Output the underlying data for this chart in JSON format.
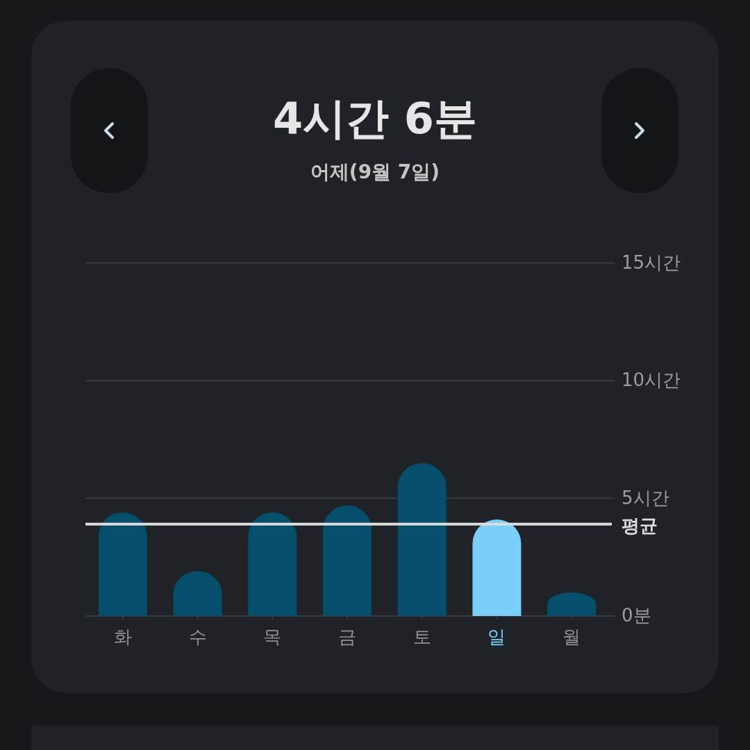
{
  "chart_data": {
    "type": "bar",
    "title": "4시간 6분",
    "subtitle": "어제(9월 7일)",
    "categories": [
      "화",
      "수",
      "목",
      "금",
      "토",
      "일",
      "월"
    ],
    "values": [
      4.4,
      1.9,
      4.4,
      4.7,
      6.5,
      4.1,
      1.0
    ],
    "colors": [
      "#054f6c",
      "#054f6c",
      "#054f6c",
      "#054f6c",
      "#054f6c",
      "#79cefa",
      "#054f6c"
    ],
    "ylim": [
      0,
      15
    ],
    "yticks": [
      {
        "value": 0,
        "label": "0분"
      },
      {
        "value": 5,
        "label": "5시간"
      },
      {
        "value": 10,
        "label": "10시간"
      },
      {
        "value": 15,
        "label": "15시간"
      }
    ],
    "grid": "y",
    "ref_lines": [
      {
        "axis": "y",
        "value": 3.9,
        "label": "평균",
        "color": "#dcdcdc"
      }
    ]
  }
}
